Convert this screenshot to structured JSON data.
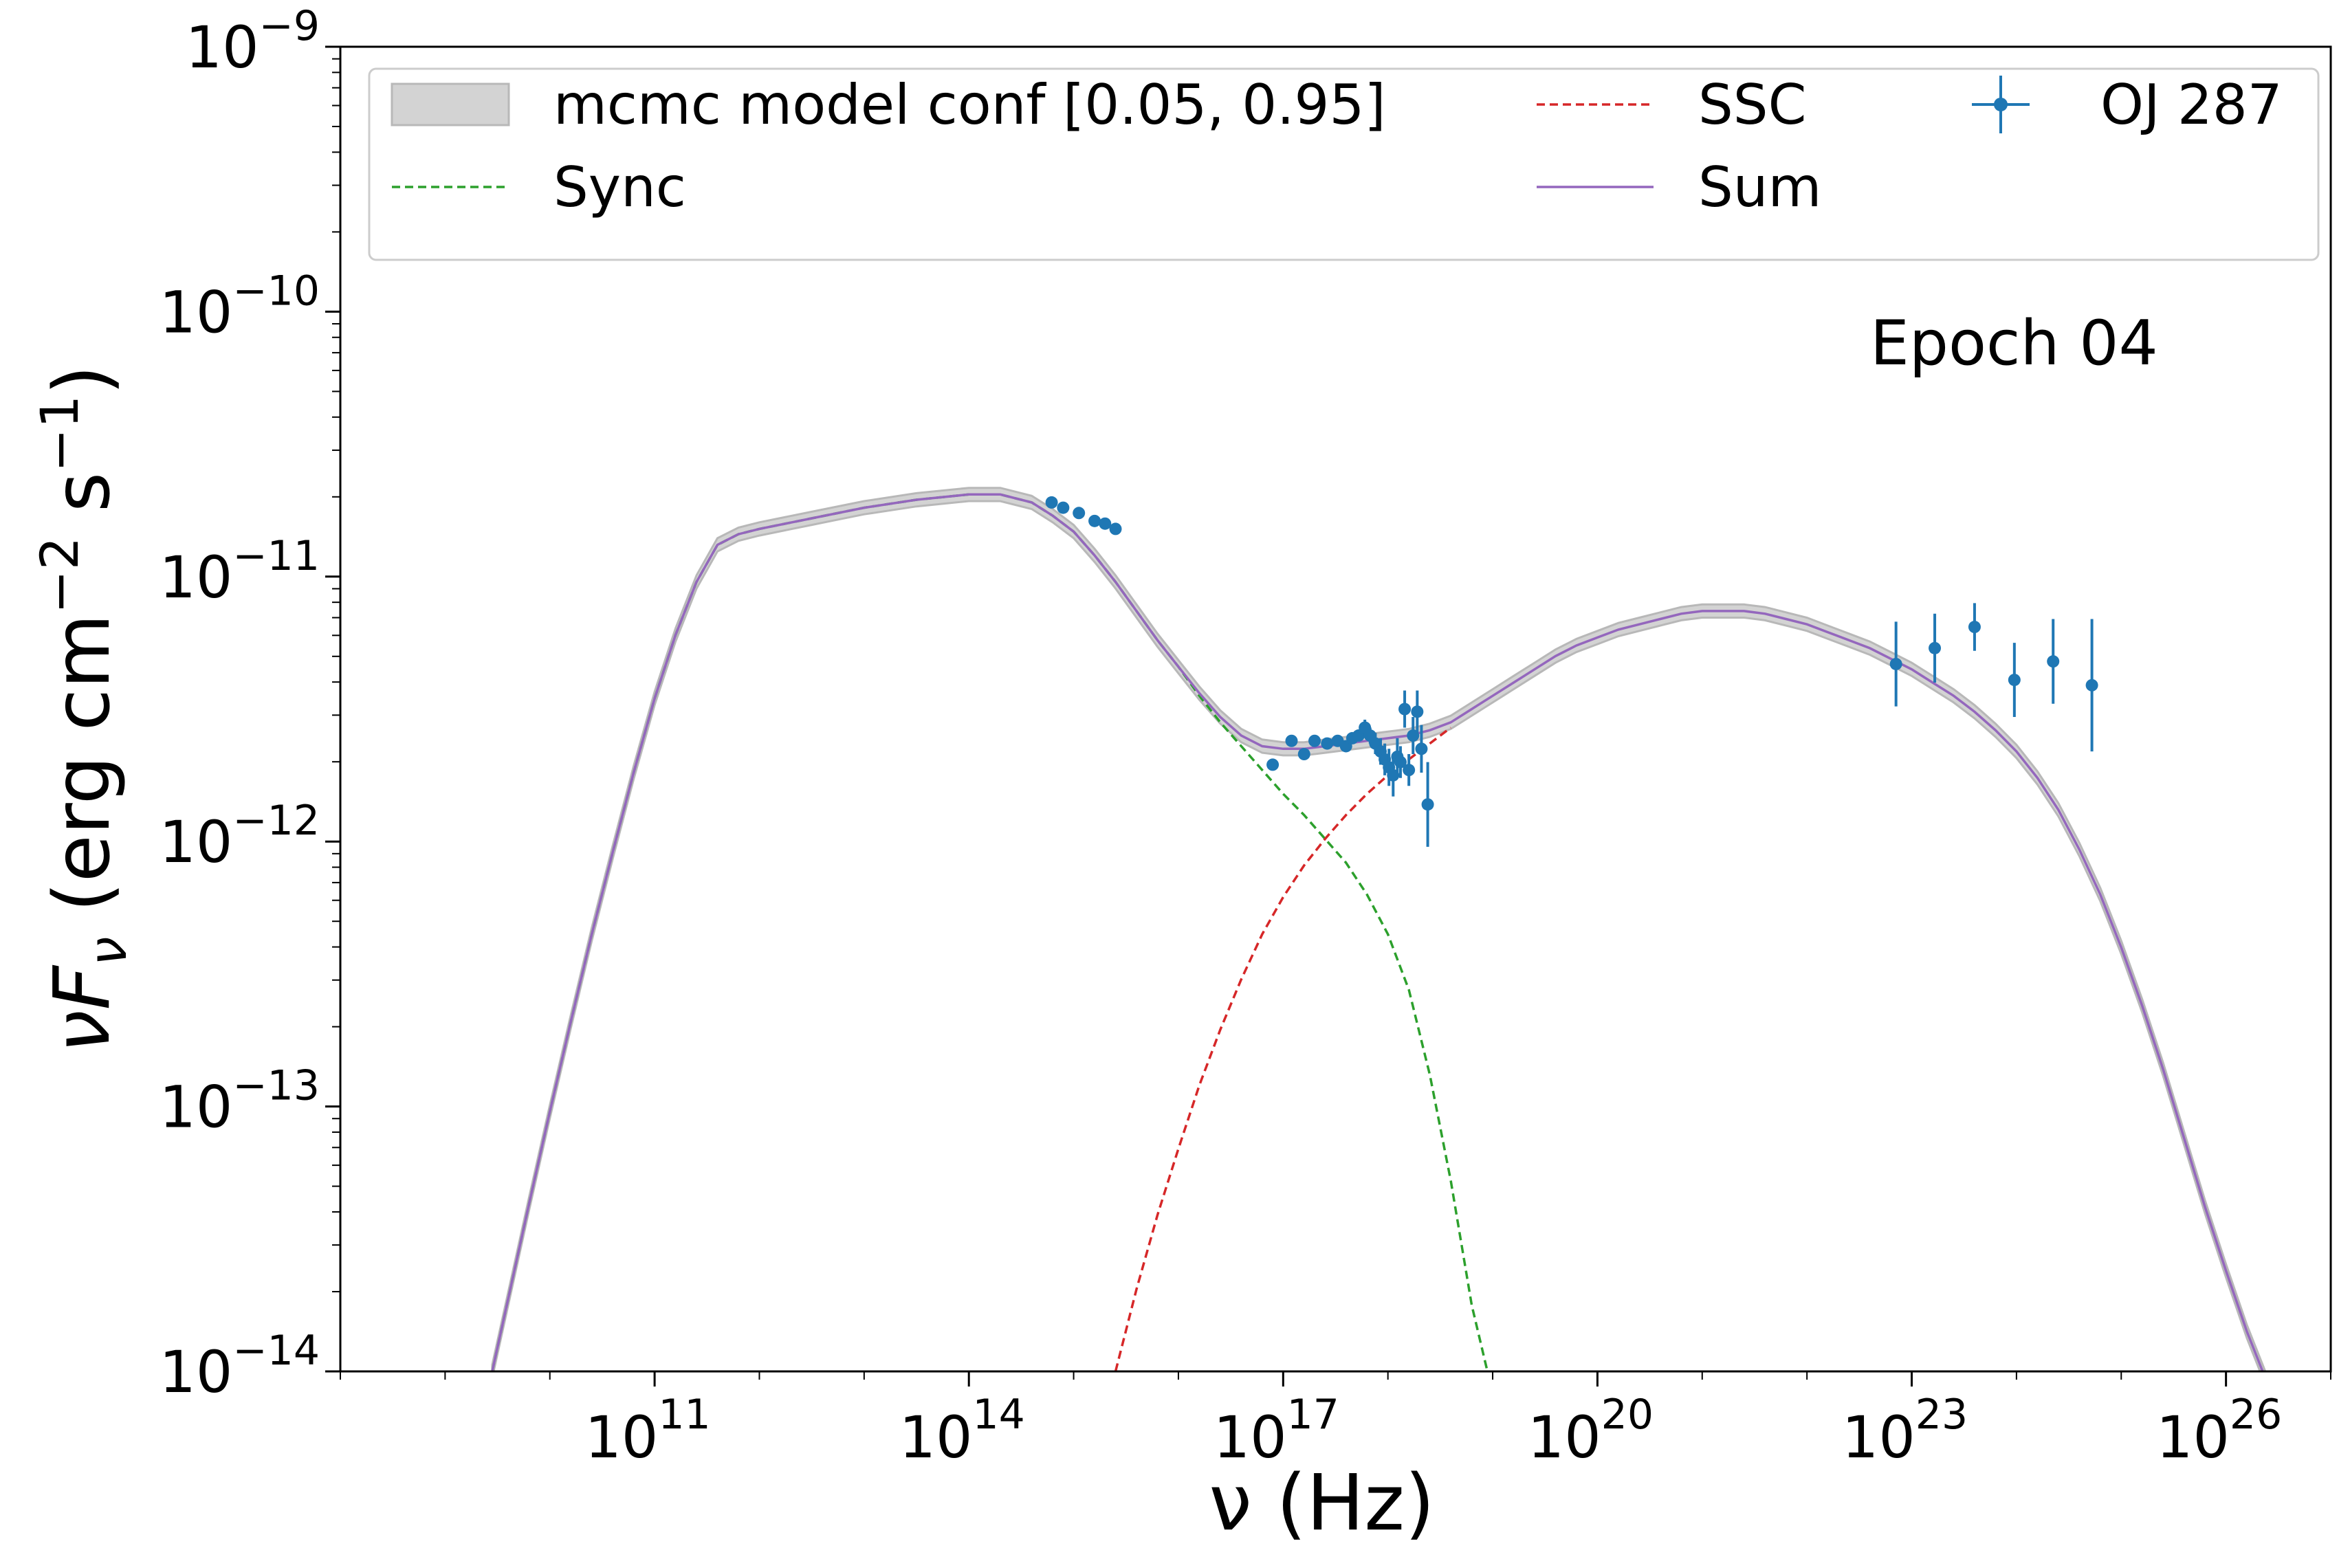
{
  "chart_data": {
    "type": "line",
    "x_scale": "log",
    "y_scale": "log",
    "xlabel": "ν  (Hz)",
    "ylabel": "νF_ν  (erg cm^-2  s^-1)",
    "xlim": [
      100000000.0,
      1e+27
    ],
    "ylim": [
      1e-14,
      1e-09
    ],
    "x_ticks": [
      {
        "value": 100000000000.0,
        "base": "10",
        "exp": "11"
      },
      {
        "value": 100000000000000.0,
        "base": "10",
        "exp": "14"
      },
      {
        "value": 1e+17,
        "base": "10",
        "exp": "17"
      },
      {
        "value": 1e+20,
        "base": "10",
        "exp": "20"
      },
      {
        "value": 1e+23,
        "base": "10",
        "exp": "23"
      },
      {
        "value": 1e+26,
        "base": "10",
        "exp": "26"
      }
    ],
    "y_ticks": [
      {
        "value": 1e-14,
        "base": "10",
        "exp": "−14"
      },
      {
        "value": 1e-13,
        "base": "10",
        "exp": "−13"
      },
      {
        "value": 1e-12,
        "base": "10",
        "exp": "−12"
      },
      {
        "value": 1e-11,
        "base": "10",
        "exp": "−11"
      },
      {
        "value": 1e-10,
        "base": "10",
        "exp": "−10"
      },
      {
        "value": 1e-09,
        "base": "10",
        "exp": "−9"
      }
    ],
    "annotation": "Epoch 04",
    "legend": {
      "placement": "top",
      "entries": [
        {
          "key": "band",
          "label": "mcmc model conf [0.05, 0.95]"
        },
        {
          "key": "sync",
          "label": "Sync"
        },
        {
          "key": "ssc",
          "label": "SSC"
        },
        {
          "key": "sum",
          "label": "Sum"
        },
        {
          "key": "data",
          "label": "OJ 287"
        }
      ]
    },
    "colors": {
      "band": "#d3d3d3",
      "band_edge": "#b8b8b8",
      "sync": "#2ca02c",
      "ssc": "#d62728",
      "sum": "#9467bd",
      "data": "#1f77b4"
    },
    "series": [
      {
        "name": "Sync",
        "style": "dashed",
        "log_x": [
          9.45,
          9.6,
          9.8,
          10.0,
          10.2,
          10.4,
          10.6,
          10.8,
          11.0,
          11.2,
          11.4,
          11.6,
          11.8,
          12.0,
          12.5,
          13.0,
          13.5,
          14.0,
          14.3,
          14.6,
          14.8,
          15.0,
          15.2,
          15.4,
          15.6,
          15.8,
          16.0,
          16.2,
          16.4,
          16.6,
          16.8,
          17.0,
          17.2,
          17.4,
          17.6,
          17.8,
          18.0,
          18.2,
          18.4,
          18.6,
          18.8,
          18.95
        ],
        "log_y": [
          -14.0,
          -13.73,
          -13.37,
          -13.02,
          -12.68,
          -12.35,
          -12.04,
          -11.74,
          -11.46,
          -11.22,
          -11.02,
          -10.88,
          -10.84,
          -10.82,
          -10.78,
          -10.74,
          -10.71,
          -10.69,
          -10.69,
          -10.72,
          -10.77,
          -10.83,
          -10.92,
          -11.02,
          -11.13,
          -11.24,
          -11.34,
          -11.45,
          -11.55,
          -11.64,
          -11.73,
          -11.82,
          -11.9,
          -11.99,
          -12.08,
          -12.2,
          -12.35,
          -12.56,
          -12.88,
          -13.28,
          -13.75,
          -14.0
        ]
      },
      {
        "name": "SSC",
        "style": "dashed",
        "log_x": [
          15.4,
          15.6,
          15.8,
          16.0,
          16.2,
          16.4,
          16.6,
          16.8,
          17.0,
          17.2,
          17.4,
          17.6,
          17.8,
          18.0,
          18.2,
          18.4,
          18.6
        ],
        "log_y": [
          -14.0,
          -13.69,
          -13.41,
          -13.16,
          -12.92,
          -12.71,
          -12.52,
          -12.35,
          -12.21,
          -12.09,
          -11.99,
          -11.9,
          -11.82,
          -11.75,
          -11.69,
          -11.63,
          -11.57
        ]
      },
      {
        "name": "Sum",
        "style": "solid",
        "log_x": [
          9.45,
          9.6,
          9.8,
          10.0,
          10.2,
          10.4,
          10.6,
          10.8,
          11.0,
          11.2,
          11.4,
          11.6,
          11.8,
          12.0,
          12.5,
          13.0,
          13.5,
          14.0,
          14.3,
          14.6,
          14.8,
          15.0,
          15.2,
          15.4,
          15.6,
          15.8,
          16.0,
          16.2,
          16.4,
          16.6,
          16.8,
          17.0,
          17.2,
          17.4,
          17.6,
          17.8,
          18.0,
          18.2,
          18.4,
          18.6,
          18.8,
          19.0,
          19.2,
          19.4,
          19.6,
          19.8,
          20.0,
          20.2,
          20.4,
          20.6,
          20.8,
          21.0,
          21.2,
          21.4,
          21.6,
          21.8,
          22.0,
          22.2,
          22.4,
          22.6,
          22.8,
          23.0,
          23.2,
          23.4,
          23.6,
          23.8,
          24.0,
          24.2,
          24.4,
          24.6,
          24.8,
          25.0,
          25.2,
          25.4,
          25.6,
          25.8,
          26.0,
          26.2,
          26.4,
          26.6
        ],
        "log_y": [
          -14.0,
          -13.73,
          -13.37,
          -13.02,
          -12.68,
          -12.35,
          -12.04,
          -11.74,
          -11.46,
          -11.22,
          -11.02,
          -10.88,
          -10.84,
          -10.82,
          -10.78,
          -10.74,
          -10.71,
          -10.69,
          -10.69,
          -10.72,
          -10.77,
          -10.83,
          -10.92,
          -11.02,
          -11.13,
          -11.24,
          -11.34,
          -11.44,
          -11.53,
          -11.6,
          -11.64,
          -11.65,
          -11.65,
          -11.64,
          -11.63,
          -11.62,
          -11.61,
          -11.6,
          -11.58,
          -11.55,
          -11.5,
          -11.45,
          -11.4,
          -11.35,
          -11.3,
          -11.26,
          -11.23,
          -11.2,
          -11.18,
          -11.16,
          -11.14,
          -11.13,
          -11.13,
          -11.13,
          -11.14,
          -11.16,
          -11.18,
          -11.21,
          -11.24,
          -11.27,
          -11.31,
          -11.35,
          -11.4,
          -11.45,
          -11.51,
          -11.58,
          -11.66,
          -11.76,
          -11.88,
          -12.03,
          -12.2,
          -12.4,
          -12.62,
          -12.86,
          -13.12,
          -13.38,
          -13.62,
          -13.85,
          -14.05,
          -14.25
        ]
      }
    ],
    "band_half_width_dex": 0.025,
    "points": [
      {
        "x": 14.79,
        "y": -10.72,
        "yerr": 0
      },
      {
        "x": 14.9,
        "y": -10.74,
        "yerr": 0
      },
      {
        "x": 15.05,
        "y": -10.76,
        "yerr": 0
      },
      {
        "x": 15.2,
        "y": -10.79,
        "yerr": 0
      },
      {
        "x": 15.3,
        "y": -10.8,
        "yerr": 0
      },
      {
        "x": 15.4,
        "y": -10.82,
        "yerr": 0
      },
      {
        "x": 16.9,
        "y": -11.71,
        "yerr": 0
      },
      {
        "x": 17.08,
        "y": -11.62,
        "yerr": 0
      },
      {
        "x": 17.2,
        "y": -11.67,
        "yerr": 0
      },
      {
        "x": 17.3,
        "y": -11.62,
        "yerr": 0
      },
      {
        "x": 17.42,
        "y": -11.63,
        "yerr": 0.01
      },
      {
        "x": 17.52,
        "y": -11.62,
        "yerr": 0.01
      },
      {
        "x": 17.6,
        "y": -11.64,
        "yerr": 0.02
      },
      {
        "x": 17.66,
        "y": -11.61,
        "yerr": 0.02
      },
      {
        "x": 17.72,
        "y": -11.6,
        "yerr": 0.02
      },
      {
        "x": 17.78,
        "y": -11.57,
        "yerr": 0.03
      },
      {
        "x": 17.83,
        "y": -11.6,
        "yerr": 0.03
      },
      {
        "x": 17.88,
        "y": -11.63,
        "yerr": 0.04
      },
      {
        "x": 17.93,
        "y": -11.66,
        "yerr": 0.05
      },
      {
        "x": 17.97,
        "y": -11.69,
        "yerr": 0.06
      },
      {
        "x": 18.01,
        "y": -11.72,
        "yerr": 0.07
      },
      {
        "x": 18.05,
        "y": -11.75,
        "yerr": 0.08
      },
      {
        "x": 18.09,
        "y": -11.68,
        "yerr": 0.07
      },
      {
        "x": 18.12,
        "y": -11.7,
        "yerr": 0.06
      },
      {
        "x": 18.16,
        "y": -11.5,
        "yerr": 0.07
      },
      {
        "x": 18.2,
        "y": -11.73,
        "yerr": 0.06
      },
      {
        "x": 18.24,
        "y": -11.6,
        "yerr": 0.07
      },
      {
        "x": 18.28,
        "y": -11.51,
        "yerr": 0.08
      },
      {
        "x": 18.32,
        "y": -11.65,
        "yerr": 0.09
      },
      {
        "x": 18.38,
        "y": -11.86,
        "yerr": 0.16
      },
      {
        "x": 22.85,
        "y": -11.33,
        "yerr": 0.16
      },
      {
        "x": 23.22,
        "y": -11.27,
        "yerr": 0.13
      },
      {
        "x": 23.6,
        "y": -11.19,
        "yerr": 0.09
      },
      {
        "x": 23.98,
        "y": -11.39,
        "yerr": 0.14
      },
      {
        "x": 24.35,
        "y": -11.32,
        "yerr": 0.16
      },
      {
        "x": 24.72,
        "y": -11.41,
        "yerr": 0.25
      }
    ]
  }
}
